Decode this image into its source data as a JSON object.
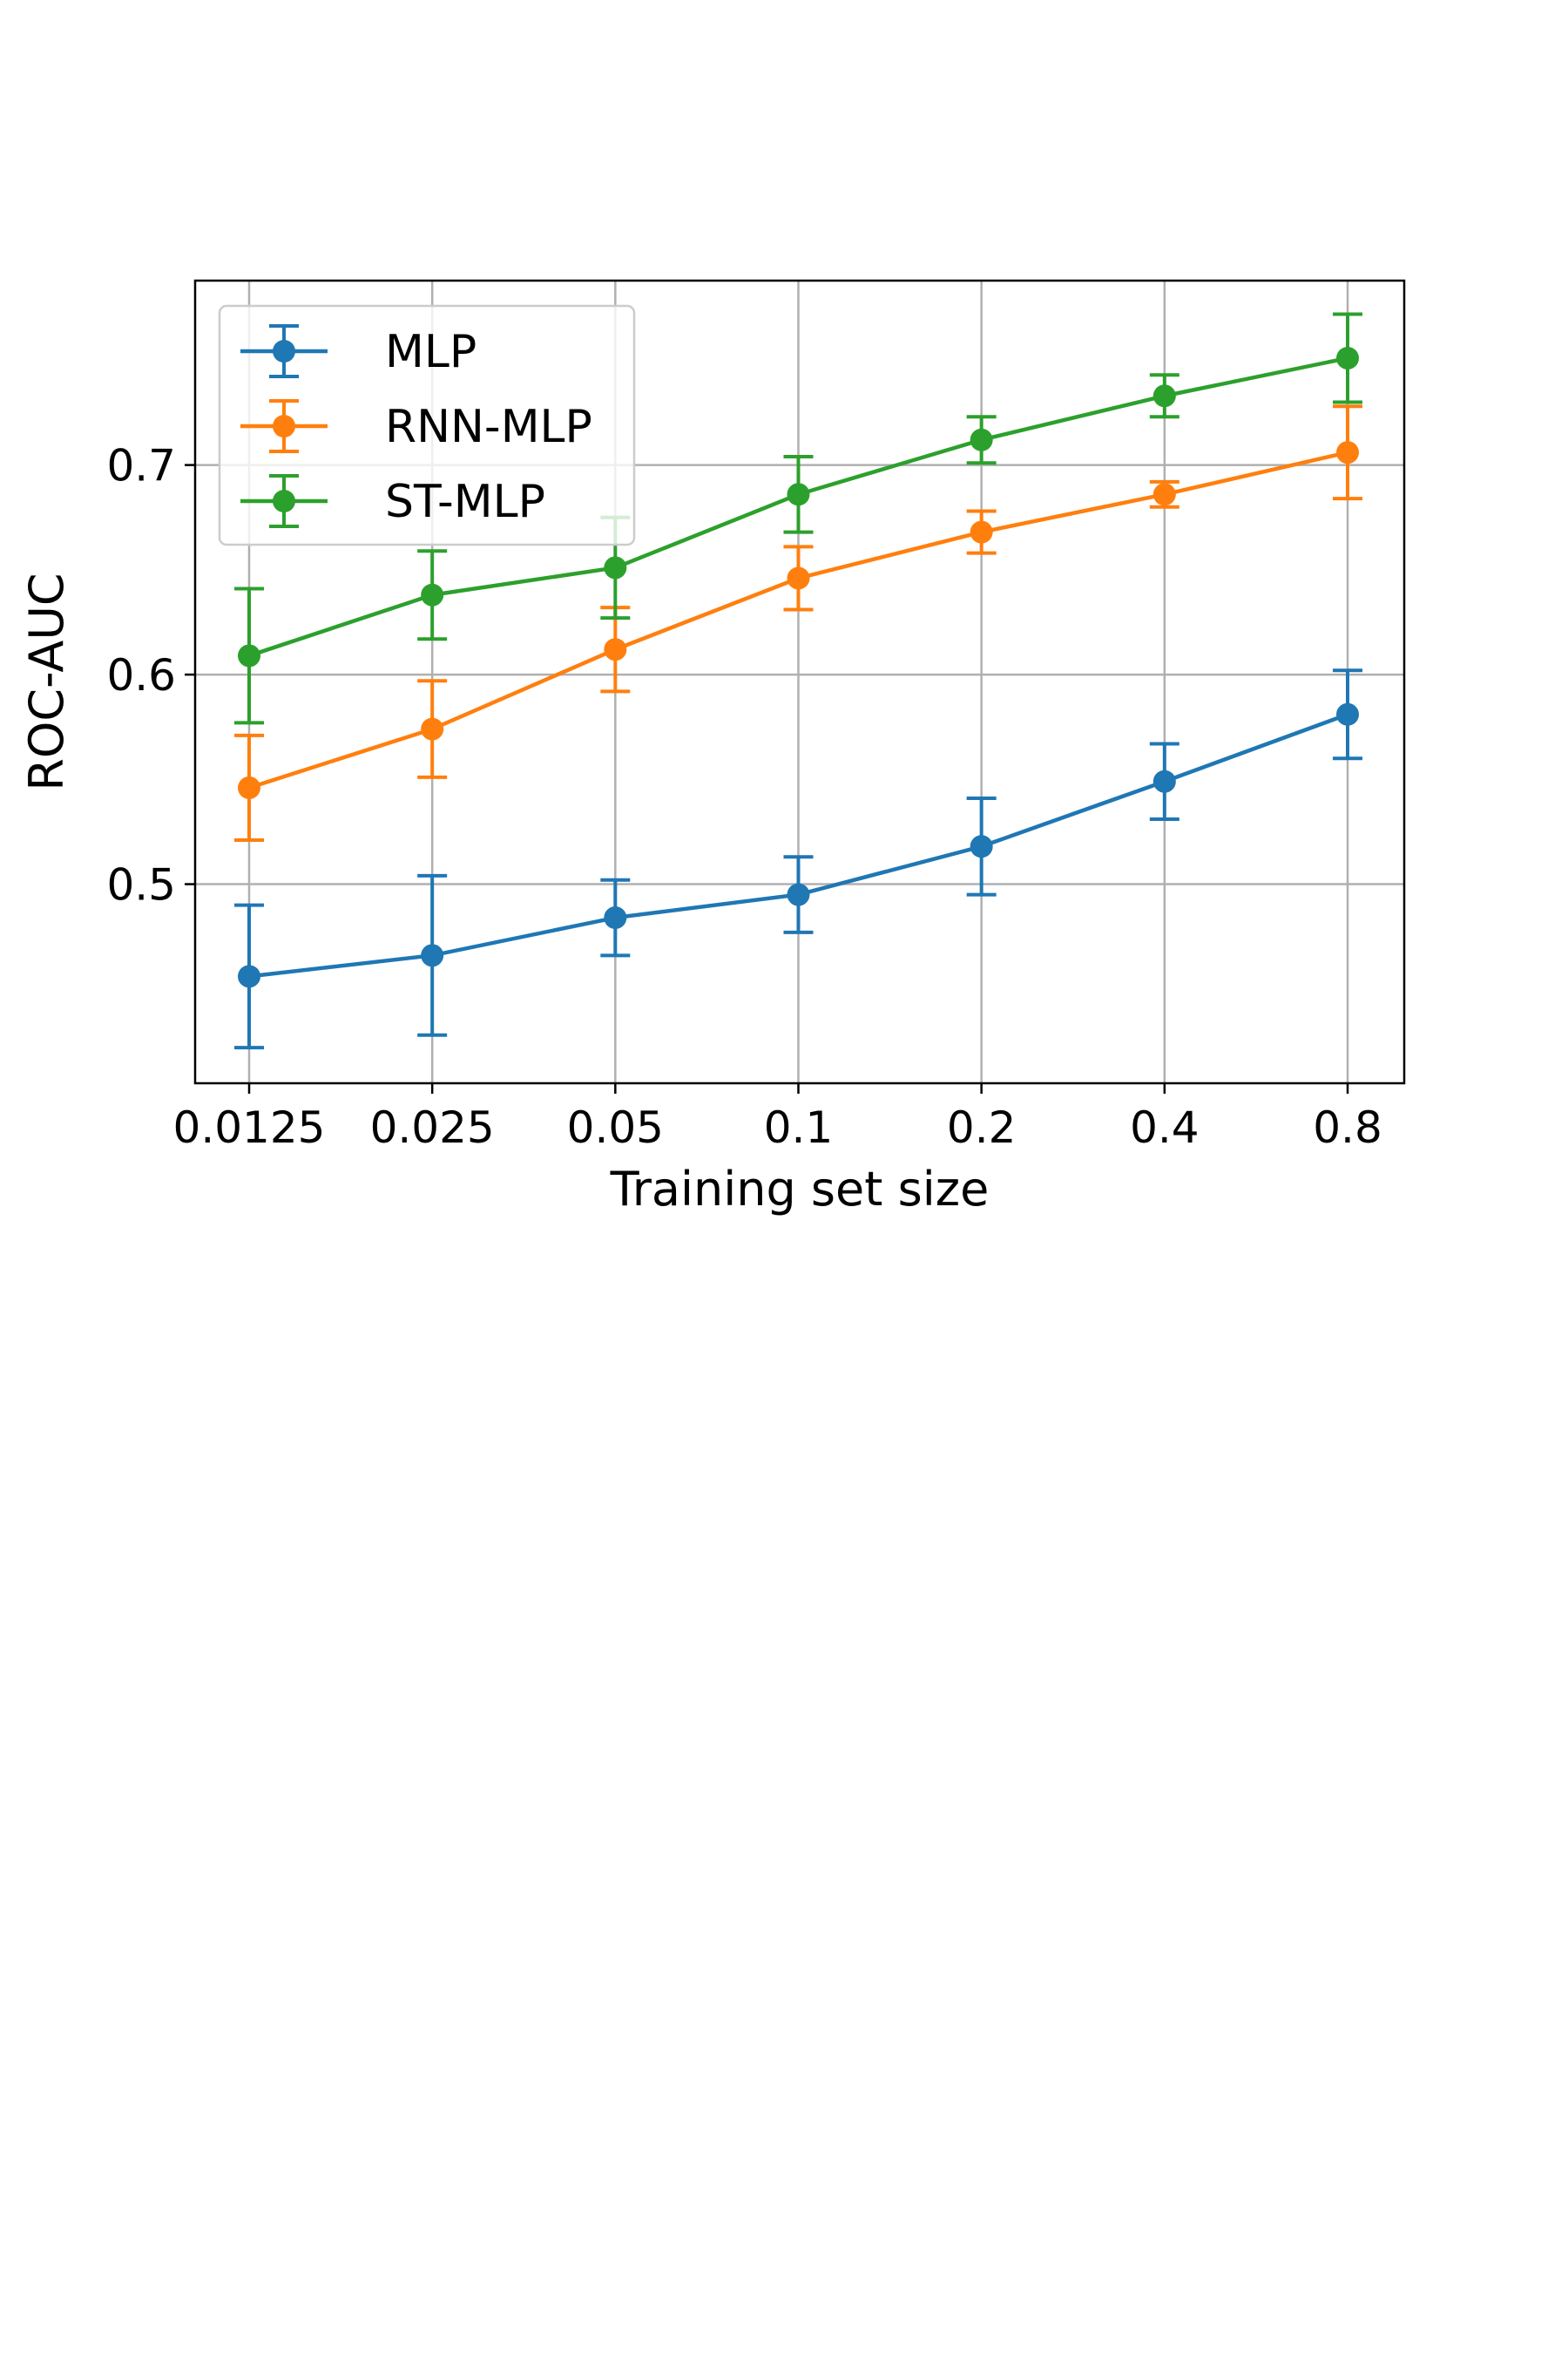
{
  "chart_data": {
    "type": "line",
    "title": "",
    "xlabel": "Training set size",
    "ylabel": "ROC-AUC",
    "categories": [
      "0.0125",
      "0.025",
      "0.05",
      "0.1",
      "0.2",
      "0.4",
      "0.8"
    ],
    "yticks": [
      "0.5",
      "0.6",
      "0.7"
    ],
    "ylim": [
      0.405,
      0.788
    ],
    "grid": true,
    "legend_position": "top-left",
    "series": [
      {
        "name": "MLP",
        "color": "#1f77b4",
        "values": [
          0.456,
          0.466,
          0.484,
          0.495,
          0.518,
          0.549,
          0.581
        ],
        "errors": [
          0.034,
          0.038,
          0.018,
          0.018,
          0.023,
          0.018,
          0.021
        ]
      },
      {
        "name": "RNN-MLP",
        "color": "#ff7f0e",
        "values": [
          0.546,
          0.574,
          0.612,
          0.646,
          0.668,
          0.686,
          0.706
        ],
        "errors": [
          0.025,
          0.023,
          0.02,
          0.015,
          0.01,
          0.006,
          0.022
        ]
      },
      {
        "name": "ST-MLP",
        "color": "#2ca02c",
        "values": [
          0.609,
          0.638,
          0.651,
          0.686,
          0.712,
          0.733,
          0.751
        ],
        "errors": [
          0.032,
          0.021,
          0.024,
          0.018,
          0.011,
          0.01,
          0.021
        ]
      }
    ]
  }
}
